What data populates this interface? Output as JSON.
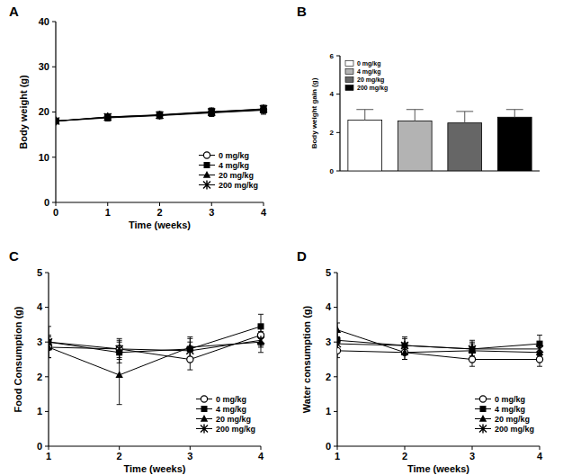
{
  "chart_data": [
    {
      "type": "line",
      "title": "A",
      "x_label": "Time (weeks)",
      "y_label": "Body weight (g)",
      "x": [
        0,
        1,
        2,
        3,
        4
      ],
      "xlim": [
        0,
        4
      ],
      "xticks": [
        0,
        1,
        2,
        3,
        4
      ],
      "ylim": [
        0,
        40
      ],
      "yticks": [
        0,
        10,
        20,
        30,
        40
      ],
      "grid": false,
      "legend": "lower right",
      "series": [
        {
          "name": "0 mg/kg",
          "color": "#000000",
          "marker": "open-circle",
          "values": [
            18.0,
            18.8,
            19.3,
            19.9,
            20.5
          ],
          "errors": [
            0.5,
            0.7,
            0.7,
            0.8,
            0.8
          ]
        },
        {
          "name": "4 mg/kg",
          "color": "#000000",
          "marker": "square",
          "values": [
            18.0,
            18.9,
            19.4,
            20.1,
            20.6
          ],
          "errors": [
            0.5,
            0.6,
            0.7,
            0.8,
            0.8
          ]
        },
        {
          "name": "20 mg/kg",
          "color": "#000000",
          "marker": "triangle",
          "values": [
            18.0,
            18.7,
            19.2,
            19.8,
            20.4
          ],
          "errors": [
            0.5,
            0.7,
            0.7,
            0.8,
            0.9
          ]
        },
        {
          "name": "200 mg/kg",
          "color": "#000000",
          "marker": "star",
          "values": [
            18.0,
            18.9,
            19.3,
            20.0,
            20.7
          ],
          "errors": [
            0.5,
            0.6,
            0.7,
            0.8,
            0.8
          ]
        }
      ]
    },
    {
      "type": "bar",
      "title": "B",
      "y_label": "Body weight gain (g)",
      "categories": [
        null
      ],
      "ylim": [
        0,
        6
      ],
      "yticks": [
        0,
        2,
        4,
        6
      ],
      "grid": false,
      "legend": "upper left",
      "tick_labels": "y",
      "series": [
        {
          "name": "0 mg/kg",
          "color": "#ffffff",
          "values": [
            2.65
          ],
          "errors": [
            0.55
          ]
        },
        {
          "name": "4 mg/kg",
          "color": "#b3b3b3",
          "values": [
            2.6
          ],
          "errors": [
            0.6
          ]
        },
        {
          "name": "20 mg/kg",
          "color": "#666666",
          "values": [
            2.5
          ],
          "errors": [
            0.6
          ]
        },
        {
          "name": "200 mg/kg",
          "color": "#000000",
          "values": [
            2.8
          ],
          "errors": [
            0.4
          ]
        }
      ]
    },
    {
      "type": "line",
      "title": "C",
      "x_label": "Time (weeks)",
      "y_label": "Food Consumption (g)",
      "x": [
        1,
        2,
        3,
        4
      ],
      "xlim": [
        1,
        4
      ],
      "xticks": [
        1,
        2,
        3,
        4
      ],
      "ylim": [
        0,
        5
      ],
      "yticks": [
        0,
        1,
        2,
        3,
        4,
        5
      ],
      "grid": false,
      "legend": "lower right",
      "series": [
        {
          "name": "0 mg/kg",
          "color": "#000000",
          "marker": "open-circle",
          "values": [
            2.85,
            2.8,
            2.5,
            3.2
          ],
          "errors": [
            0.3,
            0.3,
            0.3,
            0.3
          ]
        },
        {
          "name": "4 mg/kg",
          "color": "#000000",
          "marker": "square",
          "values": [
            3.0,
            2.7,
            2.8,
            3.45
          ],
          "errors": [
            0.2,
            0.3,
            0.3,
            0.35
          ]
        },
        {
          "name": "20 mg/kg",
          "color": "#000000",
          "marker": "triangle",
          "values": [
            2.85,
            2.05,
            2.85,
            3.0
          ],
          "errors": [
            0.3,
            0.85,
            0.3,
            0.3
          ]
        },
        {
          "name": "200 mg/kg",
          "color": "#000000",
          "marker": "star",
          "values": [
            3.0,
            2.8,
            2.75,
            3.05
          ],
          "errors": [
            0.45,
            0.25,
            0.25,
            0.2
          ]
        }
      ]
    },
    {
      "type": "line",
      "title": "D",
      "x_label": "Time (weeks)",
      "y_label": "Water consumption (g)",
      "x": [
        1,
        2,
        3,
        4
      ],
      "xlim": [
        1,
        4
      ],
      "xticks": [
        1,
        2,
        3,
        4
      ],
      "ylim": [
        0,
        5
      ],
      "yticks": [
        0,
        1,
        2,
        3,
        4,
        5
      ],
      "grid": false,
      "legend": "lower right",
      "series": [
        {
          "name": "0 mg/kg",
          "color": "#000000",
          "marker": "open-circle",
          "values": [
            2.75,
            2.7,
            2.5,
            2.5
          ],
          "errors": [
            0.2,
            0.2,
            0.2,
            0.2
          ]
        },
        {
          "name": "4 mg/kg",
          "color": "#000000",
          "marker": "square",
          "values": [
            3.05,
            2.9,
            2.8,
            2.95
          ],
          "errors": [
            0.25,
            0.25,
            0.25,
            0.25
          ]
        },
        {
          "name": "20 mg/kg",
          "color": "#000000",
          "marker": "triangle",
          "values": [
            3.35,
            2.7,
            2.75,
            2.7
          ],
          "errors": [
            0.2,
            0.2,
            0.2,
            0.2
          ]
        },
        {
          "name": "200 mg/kg",
          "color": "#000000",
          "marker": "star",
          "values": [
            2.95,
            2.9,
            2.8,
            2.8
          ],
          "errors": [
            0.2,
            0.2,
            0.2,
            0.2
          ]
        }
      ]
    }
  ]
}
